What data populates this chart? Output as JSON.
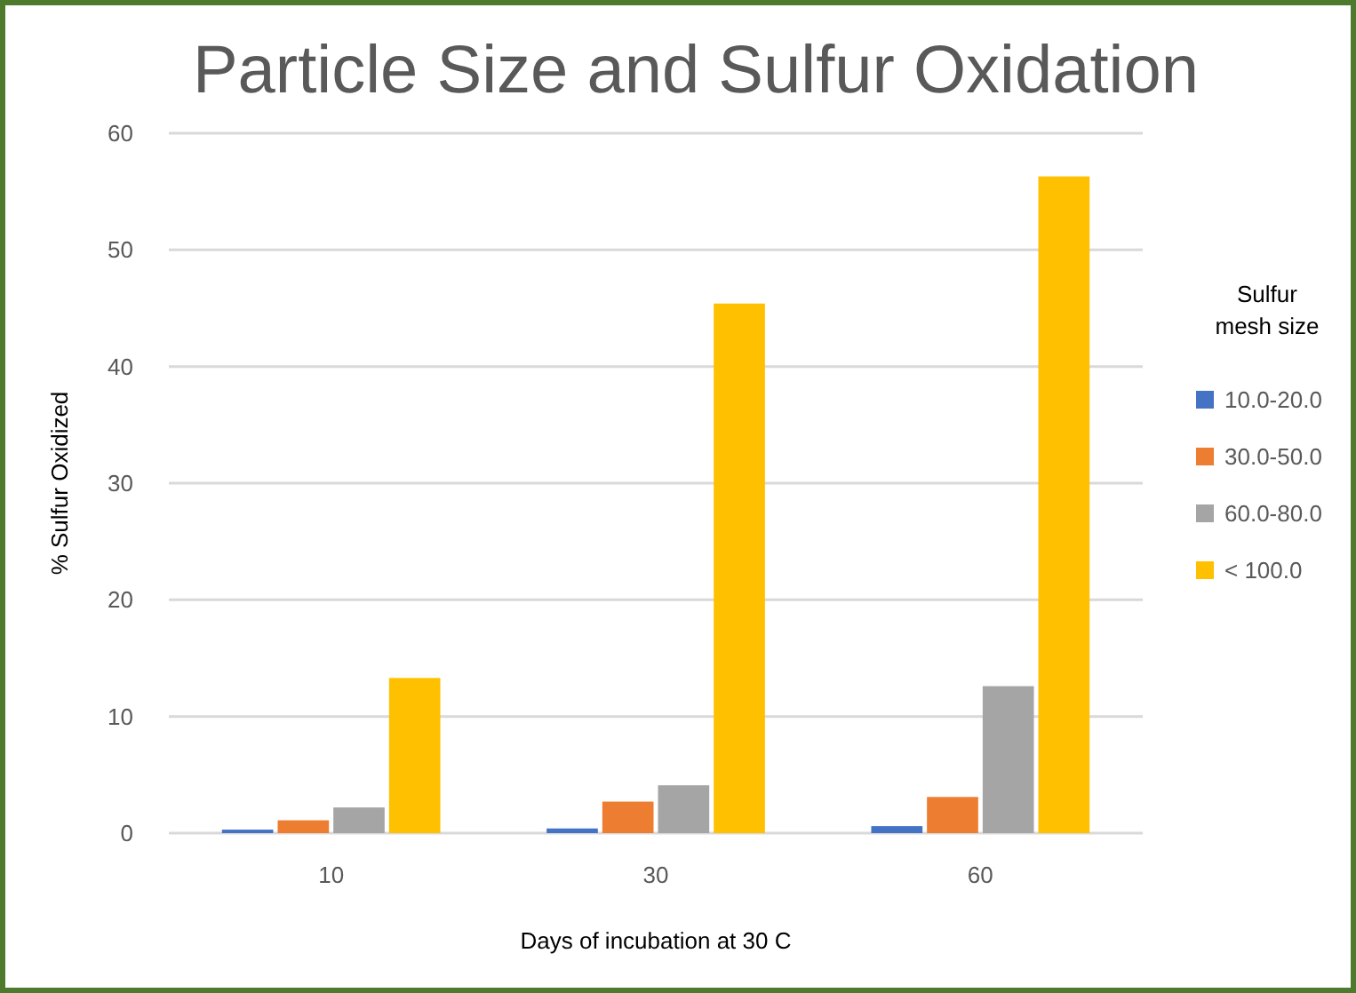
{
  "chart_data": {
    "type": "bar",
    "title": "Particle Size and Sulfur Oxidation",
    "xlabel": "Days of incubation at 30 C",
    "ylabel": "% Sulfur Oxidized",
    "legend_title": "Sulfur mesh size",
    "categories": [
      "10",
      "30",
      "60"
    ],
    "series": [
      {
        "name": "10.0-20.0",
        "color": "#4472c4",
        "values": [
          0.3,
          0.4,
          0.6
        ]
      },
      {
        "name": "30.0-50.0",
        "color": "#ed7d31",
        "values": [
          1.1,
          2.7,
          3.1
        ]
      },
      {
        "name": "60.0-80.0",
        "color": "#a5a5a5",
        "values": [
          2.2,
          4.1,
          12.6
        ]
      },
      {
        "name": "< 100.0",
        "color": "#ffc000",
        "values": [
          13.3,
          45.4,
          56.3
        ]
      }
    ],
    "ylim": [
      0,
      60
    ],
    "yticks": [
      0,
      10,
      20,
      30,
      40,
      50,
      60
    ],
    "grid": true,
    "legend": "right"
  }
}
